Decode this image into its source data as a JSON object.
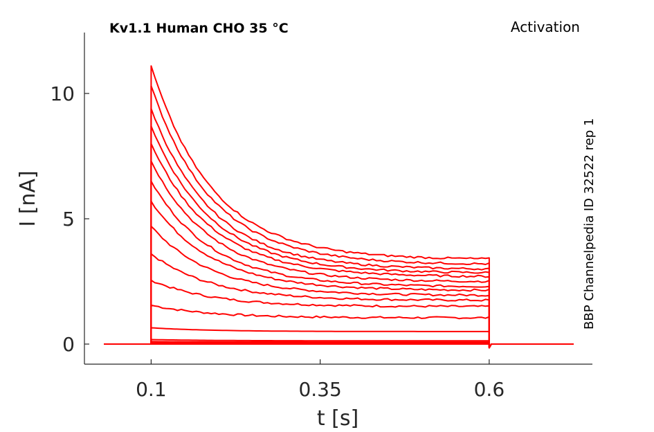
{
  "chart_data": {
    "type": "line",
    "title": "Kv1.1  Human  CHO  35 °C",
    "title_right": "Activation",
    "side_label": "BBP Channelpedia ID 32522 rep 1",
    "xlabel": "t [s]",
    "ylabel": "I [nA]",
    "xlim": [
      0.0,
      0.75
    ],
    "ylim": [
      -0.8,
      12.5
    ],
    "x_ticks": [
      0.1,
      0.35,
      0.6
    ],
    "x_tick_labels": [
      "0.1",
      "0.35",
      "0.6"
    ],
    "y_ticks": [
      0,
      5,
      10
    ],
    "y_tick_labels": [
      "0",
      "5",
      "10"
    ],
    "grid": false,
    "trace_color": "#ff0000",
    "pulse": {
      "start": 0.1,
      "end": 0.6,
      "baseline": 0.0,
      "t_start": 0.03,
      "t_end": 0.725
    },
    "series": [
      {
        "peak": 0.0,
        "end": 0.0
      },
      {
        "peak": 0.05,
        "end": 0.04
      },
      {
        "peak": 0.1,
        "end": 0.08
      },
      {
        "peak": 0.18,
        "end": 0.13
      },
      {
        "peak": 0.65,
        "end": 0.5
      },
      {
        "peak": 1.55,
        "end": 1.05
      },
      {
        "peak": 2.55,
        "end": 1.5
      },
      {
        "peak": 3.6,
        "end": 1.75
      },
      {
        "peak": 4.7,
        "end": 1.95
      },
      {
        "peak": 5.7,
        "end": 2.15
      },
      {
        "peak": 6.5,
        "end": 2.3
      },
      {
        "peak": 7.3,
        "end": 2.5
      },
      {
        "peak": 8.0,
        "end": 2.7
      },
      {
        "peak": 8.7,
        "end": 2.85
      },
      {
        "peak": 9.4,
        "end": 3.0
      },
      {
        "peak": 10.3,
        "end": 3.2
      },
      {
        "peak": 11.1,
        "end": 3.4
      }
    ]
  }
}
